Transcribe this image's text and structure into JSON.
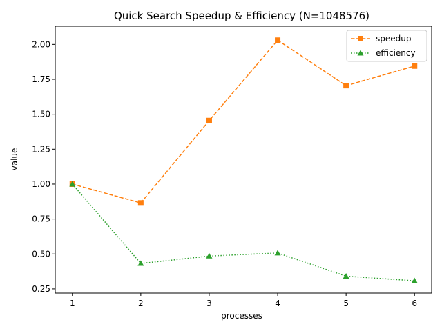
{
  "chart_data": {
    "type": "line",
    "title": "Quick Search Speedup & Efficiency (N=1048576)",
    "xlabel": "processes",
    "ylabel": "value",
    "x": [
      1,
      2,
      3,
      4,
      5,
      6
    ],
    "xticks": [
      "1",
      "2",
      "3",
      "4",
      "5",
      "6"
    ],
    "yticks": [
      "0.25",
      "0.50",
      "0.75",
      "1.00",
      "1.25",
      "1.50",
      "1.75",
      "2.00"
    ],
    "xlim": [
      0.75,
      6.25
    ],
    "ylim": [
      0.22,
      2.13
    ],
    "grid": false,
    "legend_position": "upper-right",
    "series": [
      {
        "name": "speedup",
        "values": [
          1.0,
          0.865,
          1.455,
          2.03,
          1.705,
          1.845
        ],
        "color": "#ff7f0e",
        "linestyle": "dashed",
        "marker": "square"
      },
      {
        "name": "efficiency",
        "values": [
          1.0,
          0.432,
          0.485,
          0.507,
          0.341,
          0.308
        ],
        "color": "#2ca02c",
        "linestyle": "dotted",
        "marker": "triangle"
      }
    ]
  }
}
